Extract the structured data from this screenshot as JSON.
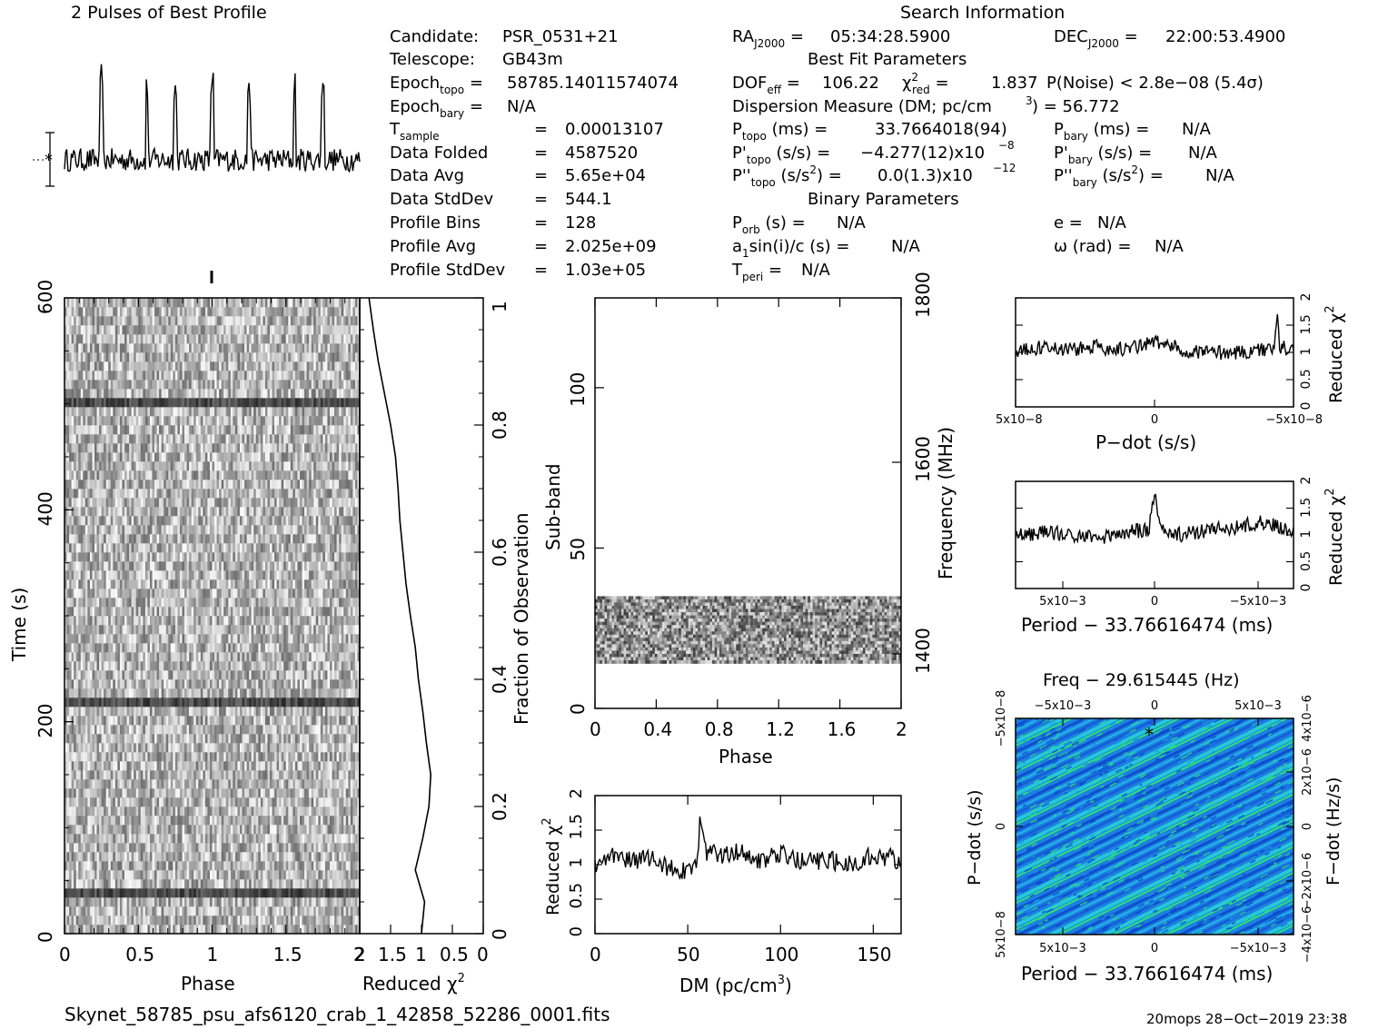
{
  "header": {
    "profile_title": "2 Pulses of Best Profile",
    "search_title": "Search Information",
    "best_fit_title": "Best Fit Parameters",
    "binary_title": "Binary Parameters"
  },
  "info": {
    "candidate": [
      "Candidate:",
      "PSR_0531+21"
    ],
    "telescope": [
      "Telescope:",
      "GB43m"
    ],
    "epoch_topo": "58785.14011574074",
    "epoch_bary": "N/A",
    "t_sample": "0.00013107",
    "data_folded": [
      "Data Folded",
      "4587520"
    ],
    "data_avg": [
      "Data Avg",
      "5.65e+04"
    ],
    "data_stddev": [
      "Data StdDev",
      "544.1"
    ],
    "profile_bins": [
      "Profile Bins",
      "128"
    ],
    "profile_avg": [
      "Profile Avg",
      "2.025e+09"
    ],
    "profile_stddev": [
      "Profile StdDev",
      "1.03e+05"
    ]
  },
  "search": {
    "ra": "05:34:28.5900",
    "dec": "22:00:53.4900",
    "dof_eff": "106.22",
    "chi2_red": "1.837",
    "p_noise": "P(Noise) < 2.8e−08  (5.4σ)",
    "dm_label": "Dispersion Measure (DM; pc/cm",
    "dm_value": ") = 56.772",
    "p_topo": "33.7664018(94)",
    "pd_topo": "−4.277(12)x10",
    "pd_exp": "−8",
    "pdd_topo": "0.0(1.3)x10",
    "pdd_exp": "−12",
    "p_bary": "N/A",
    "pd_bary": "N/A",
    "pdd_bary": "N/A",
    "p_orb": "N/A",
    "a1sini": "N/A",
    "t_peri": "N/A",
    "ecc": "N/A",
    "omega": "N/A"
  },
  "footer": {
    "filename": "Skynet_58785_psu_afs6120_crab_1_42858_52286_0001.fits",
    "stamp": "20mops 28−Oct−2019 23:38"
  },
  "colors": {
    "ink": "#000000",
    "map_low": "#0a46c8",
    "map_mid": "#1a96e6",
    "map_high": "#2ee07a"
  },
  "chart_data": [
    {
      "type": "line",
      "title": "2 Pulses of Best Profile",
      "x": "phase 0–2",
      "note_values": "noisy profile with spikes near phase 0.25, 0.56, 0.75, 1.0, 1.25, 1.56, 1.75"
    },
    {
      "type": "heatmap",
      "name": "time-phase",
      "xlabel": "Phase",
      "xlim": [
        0,
        2
      ],
      "ylabel": "Time (s)",
      "ylim": [
        0,
        600
      ],
      "x_ticks": [
        "0",
        "0.5",
        "1",
        "1.5",
        "2"
      ],
      "y_ticks": [
        "0",
        "200",
        "400",
        "600"
      ],
      "right_label": "Fraction of Observation",
      "right_ticks": [
        "0",
        "0.2",
        "0.4",
        "0.6",
        "0.8",
        "1"
      ],
      "dark_rows_s": [
        35,
        215,
        505
      ]
    },
    {
      "type": "line",
      "name": "time-chi2",
      "xlabel": "Reduced χ²",
      "x_ticks": [
        "2",
        "1.5",
        "1",
        "0.5",
        "0"
      ],
      "xlim": [
        2,
        0
      ],
      "fraction": [
        0.0,
        0.05,
        0.1,
        0.15,
        0.2,
        0.25,
        0.3,
        0.35,
        0.4,
        0.45,
        0.5,
        0.55,
        0.6,
        0.65,
        0.7,
        0.75,
        0.8,
        0.85,
        0.9,
        0.95,
        1.0
      ],
      "chi2": [
        1.0,
        0.95,
        1.1,
        0.98,
        0.88,
        0.85,
        0.92,
        0.98,
        1.05,
        1.1,
        1.18,
        1.25,
        1.3,
        1.35,
        1.38,
        1.42,
        1.5,
        1.6,
        1.7,
        1.78,
        1.85
      ]
    },
    {
      "type": "heatmap",
      "name": "subband-phase",
      "xlabel": "Phase",
      "xlim": [
        0,
        2
      ],
      "x_ticks": [
        "0",
        "0.4",
        "0.8",
        "1.2",
        "1.6",
        "2"
      ],
      "ylabel": "Sub-band",
      "ylim": [
        0,
        128
      ],
      "y_ticks": [
        "0",
        "50",
        "100"
      ],
      "right_label": "Frequency (MHz)",
      "right_ticks": [
        "1400",
        "1600",
        "1800"
      ],
      "band_subbands": [
        14,
        35
      ]
    },
    {
      "type": "line",
      "name": "dm-chi2",
      "xlabel": "DM (pc/cm³)",
      "xlim": [
        0,
        165
      ],
      "x_ticks": [
        "0",
        "50",
        "100",
        "150"
      ],
      "ylabel": "Reduced χ²",
      "ylim": [
        0,
        2
      ],
      "y_ticks": [
        "0",
        "0.5",
        "1",
        "1.5",
        "2"
      ],
      "x": [
        0,
        10,
        20,
        30,
        40,
        50,
        55,
        57,
        60,
        70,
        80,
        90,
        100,
        110,
        120,
        130,
        140,
        150,
        160,
        165
      ],
      "y": [
        1.0,
        1.15,
        1.05,
        1.1,
        0.95,
        0.9,
        1.1,
        1.72,
        1.15,
        1.15,
        1.2,
        1.05,
        1.15,
        1.05,
        1.05,
        1.05,
        1.0,
        1.15,
        1.1,
        0.95
      ]
    },
    {
      "type": "line",
      "name": "pdot-chi2",
      "xlabel": "P−dot (s/s)",
      "x_ticks": [
        "5x10−8",
        "0",
        "−5x10−8"
      ],
      "ylabel": "Reduced χ²",
      "ylim": [
        0,
        2
      ],
      "y_ticks": [
        "0",
        "0.5",
        "1",
        "1.5",
        "2"
      ],
      "x": [
        -1,
        -0.8,
        -0.6,
        -0.4,
        -0.2,
        0,
        0.2,
        0.4,
        0.6,
        0.8,
        0.86,
        0.88,
        0.9,
        1
      ],
      "y": [
        1.0,
        1.1,
        1.05,
        1.1,
        1.05,
        1.2,
        1.05,
        1.0,
        1.0,
        1.05,
        1.1,
        1.75,
        1.1,
        1.05
      ]
    },
    {
      "type": "line",
      "name": "period-chi2",
      "xlabel": "Period − 33.76616474 (ms)",
      "x_ticks": [
        "5x10−3",
        "0",
        "−5x10−3"
      ],
      "ylabel": "Reduced χ²",
      "ylim": [
        0,
        2
      ],
      "y_ticks": [
        "0",
        "0.5",
        "1",
        "1.5",
        "2"
      ],
      "x": [
        -1,
        -0.8,
        -0.6,
        -0.4,
        -0.2,
        -0.04,
        0,
        0.04,
        0.2,
        0.4,
        0.6,
        0.8,
        1
      ],
      "y": [
        1.0,
        1.05,
        1.0,
        0.95,
        1.05,
        1.1,
        1.8,
        1.1,
        1.0,
        1.1,
        1.15,
        1.25,
        1.05
      ]
    },
    {
      "type": "heatmap",
      "name": "period-pdot",
      "title": "Freq − 29.615445 (Hz)",
      "xlabel": "Period − 33.76616474 (ms)",
      "x_ticks": [
        "5x10−3",
        "0",
        "−5x10−3"
      ],
      "top_ticks": [
        "−5x10−3",
        "0",
        "5x10−3"
      ],
      "ylabel": "P−dot (s/s)",
      "y_ticks": [
        "5x10−8",
        "0",
        "−5x10−8"
      ],
      "right_label": "F−dot (Hz/s)",
      "right_ticks": [
        "−4x10−6",
        "−2x10−6",
        "0",
        "2x10−6",
        "4x10−6"
      ],
      "best_marker": [
        0.47,
        0.08
      ]
    }
  ]
}
